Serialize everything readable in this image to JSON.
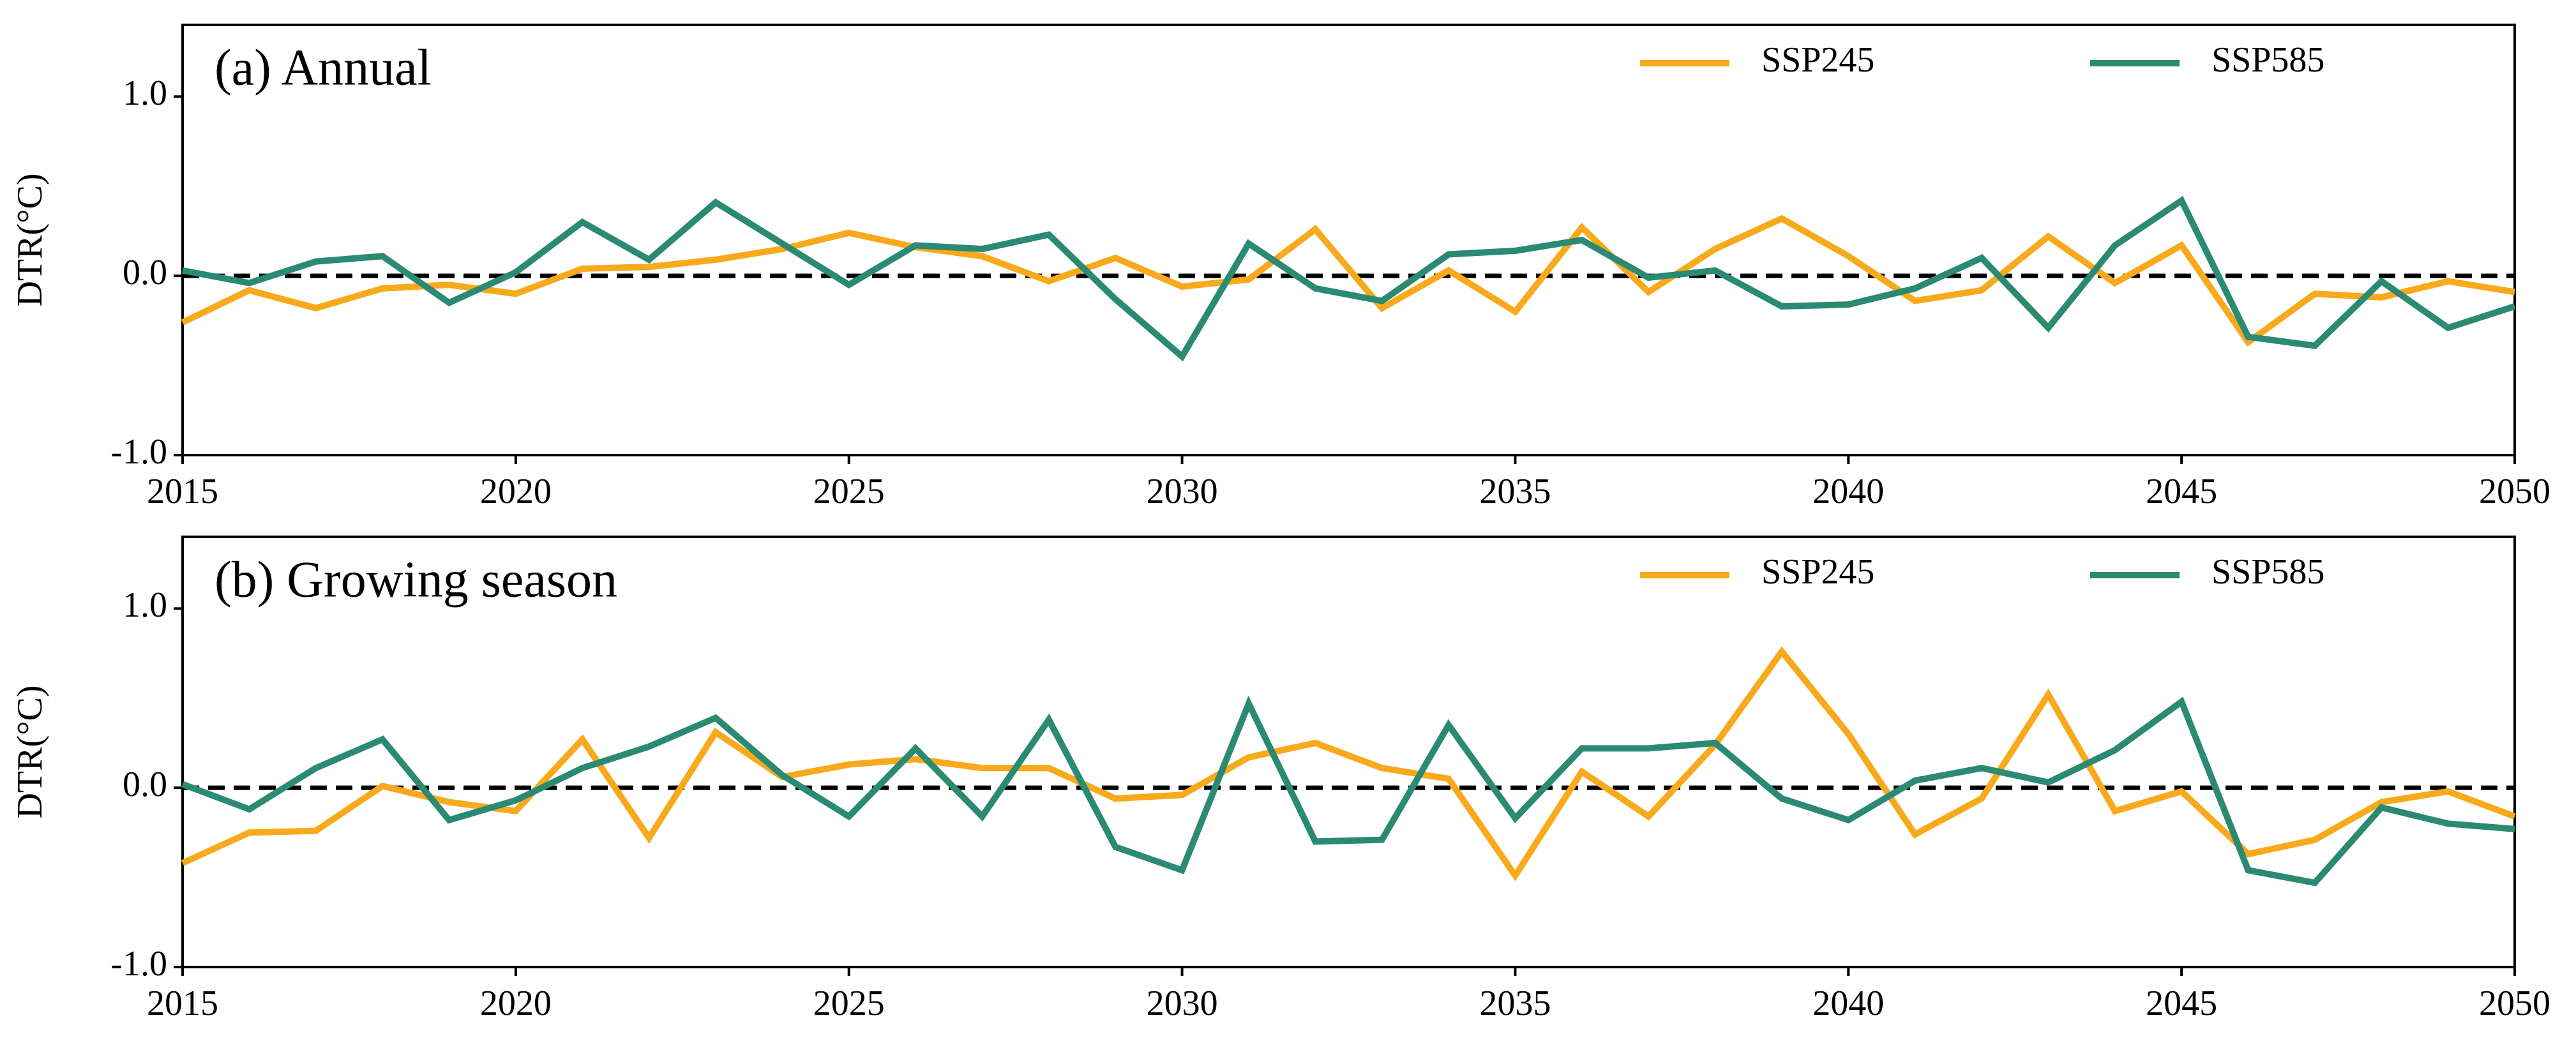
{
  "chart_data": [
    {
      "type": "line",
      "title": "(a) Annual",
      "ylabel": "DTR(°C)",
      "x": [
        2015,
        2016,
        2017,
        2018,
        2019,
        2020,
        2021,
        2022,
        2023,
        2024,
        2025,
        2026,
        2027,
        2028,
        2029,
        2030,
        2031,
        2032,
        2033,
        2034,
        2035,
        2036,
        2037,
        2038,
        2039,
        2040,
        2041,
        2042,
        2043,
        2044,
        2045,
        2046,
        2047,
        2048,
        2049,
        2050
      ],
      "series": [
        {
          "name": "SSP245",
          "color": "#f8a91c",
          "values": [
            -0.26,
            -0.08,
            -0.18,
            -0.07,
            -0.05,
            -0.1,
            0.04,
            0.05,
            0.09,
            0.15,
            0.24,
            0.16,
            0.11,
            -0.03,
            0.1,
            -0.06,
            -0.02,
            0.26,
            -0.18,
            0.03,
            -0.2,
            0.27,
            -0.09,
            0.15,
            0.32,
            0.11,
            -0.14,
            -0.08,
            0.22,
            -0.04,
            0.17,
            -0.37,
            -0.1,
            -0.12,
            -0.03,
            -0.09
          ]
        },
        {
          "name": "SSP585",
          "color": "#2a8a73",
          "values": [
            0.03,
            -0.04,
            0.08,
            0.11,
            -0.15,
            0.02,
            0.3,
            0.09,
            0.41,
            0.18,
            -0.05,
            0.17,
            0.15,
            0.23,
            -0.13,
            -0.45,
            0.18,
            -0.07,
            -0.14,
            0.12,
            0.14,
            0.2,
            -0.01,
            0.03,
            -0.17,
            -0.16,
            -0.07,
            0.1,
            -0.29,
            0.17,
            0.42,
            -0.34,
            -0.39,
            -0.03,
            -0.29,
            -0.17
          ]
        }
      ],
      "xlim": [
        2015,
        2050
      ],
      "xticks": [
        2015,
        2020,
        2025,
        2030,
        2035,
        2040,
        2045,
        2050
      ],
      "ylim": [
        -1.0,
        1.4
      ],
      "yticks": [
        {
          "value": -1.0,
          "label": "-1.0"
        },
        {
          "value": 0,
          "label": "0.0"
        },
        {
          "value": 1.0,
          "label": "1.0"
        }
      ],
      "legend": "upper right"
    },
    {
      "type": "line",
      "title": "(b) Growing season",
      "ylabel": "DTR(°C)",
      "x": [
        2015,
        2016,
        2017,
        2018,
        2019,
        2020,
        2021,
        2022,
        2023,
        2024,
        2025,
        2026,
        2027,
        2028,
        2029,
        2030,
        2031,
        2032,
        2033,
        2034,
        2035,
        2036,
        2037,
        2038,
        2039,
        2040,
        2041,
        2042,
        2043,
        2044,
        2045,
        2046,
        2047,
        2048,
        2049,
        2050
      ],
      "series": [
        {
          "name": "SSP245",
          "color": "#f8a91c",
          "values": [
            -0.42,
            -0.25,
            -0.24,
            0.01,
            -0.08,
            -0.13,
            0.27,
            -0.28,
            0.31,
            0.06,
            0.13,
            0.16,
            0.11,
            0.11,
            -0.06,
            -0.04,
            0.17,
            0.25,
            0.11,
            0.05,
            -0.49,
            0.09,
            -0.16,
            0.24,
            0.76,
            0.3,
            -0.26,
            -0.06,
            0.52,
            -0.13,
            -0.02,
            -0.37,
            -0.29,
            -0.08,
            -0.02,
            -0.16
          ]
        },
        {
          "name": "SSP585",
          "color": "#2a8a73",
          "values": [
            0.02,
            -0.12,
            0.11,
            0.27,
            -0.18,
            -0.07,
            0.11,
            0.23,
            0.39,
            0.07,
            -0.16,
            0.22,
            -0.16,
            0.38,
            -0.33,
            -0.46,
            0.47,
            -0.3,
            -0.29,
            0.35,
            -0.17,
            0.22,
            0.22,
            0.25,
            -0.06,
            -0.18,
            0.04,
            0.11,
            0.03,
            0.21,
            0.48,
            -0.46,
            -0.53,
            -0.11,
            -0.2,
            -0.23
          ]
        }
      ],
      "xlim": [
        2015,
        2050
      ],
      "xticks": [
        2015,
        2020,
        2025,
        2030,
        2035,
        2040,
        2045,
        2050
      ],
      "ylim": [
        -1.0,
        1.4
      ],
      "yticks": [
        {
          "value": -1.0,
          "label": "-1.0"
        },
        {
          "value": 0,
          "label": "0.0"
        },
        {
          "value": 1.0,
          "label": "1.0"
        }
      ],
      "legend": "upper right"
    }
  ]
}
